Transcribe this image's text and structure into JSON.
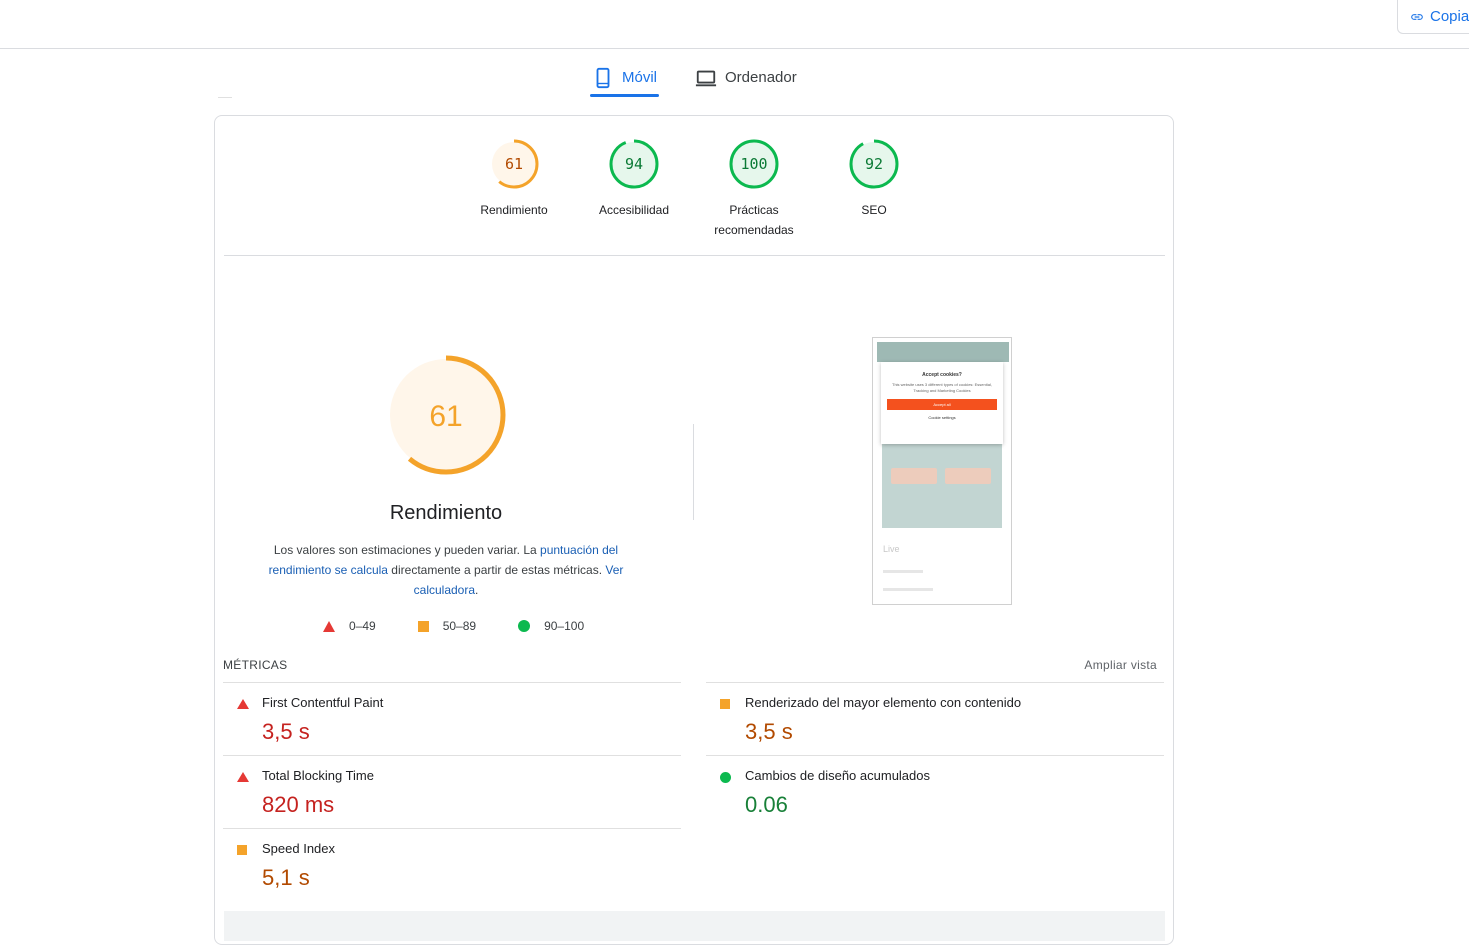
{
  "header": {
    "copy_label": "Copia"
  },
  "tabs": [
    {
      "label": "Móvil",
      "icon": "smartphone-icon",
      "active": true
    },
    {
      "label": "Ordenador",
      "icon": "laptop-icon",
      "active": false
    }
  ],
  "scores": [
    {
      "value": 61,
      "label": "Rendimiento",
      "color": "#f4a32a"
    },
    {
      "value": 94,
      "label": "Accesibilidad",
      "color": "#0cb94f"
    },
    {
      "value": 100,
      "label": "Prácticas recomendadas",
      "color": "#0cb94f"
    },
    {
      "value": 92,
      "label": "SEO",
      "color": "#0cb94f"
    }
  ],
  "performance": {
    "score": 61,
    "title": "Rendimiento",
    "desc_1": "Los valores son estimaciones y pueden variar. La ",
    "desc_link_1": "puntuación del rendimiento se calcula",
    "desc_2": " directamente a partir de estas métricas. ",
    "desc_link_2": "Ver calculadora",
    "desc_3": "."
  },
  "legend": [
    {
      "shape": "triangle",
      "range": "0–49"
    },
    {
      "shape": "square",
      "range": "50–89"
    },
    {
      "shape": "circle",
      "range": "90–100"
    }
  ],
  "screenshot": {
    "modal_title": "Accept cookies?",
    "modal_text": "This website uses 3 different types of cookies: Essential, Tracking and Marketing Cookies",
    "accept_label": "Accept all",
    "settings_label": "Cookie settings",
    "live_label": "Live"
  },
  "metrics": {
    "heading": "MÉTRICAS",
    "expand_label": "Ampliar vista",
    "items": [
      {
        "name": "First Contentful Paint",
        "value": "3,5 s",
        "rating": "fail"
      },
      {
        "name": "Renderizado del mayor elemento con contenido",
        "value": "3,5 s",
        "rating": "average"
      },
      {
        "name": "Total Blocking Time",
        "value": "820 ms",
        "rating": "fail"
      },
      {
        "name": "Cambios de diseño acumulados",
        "value": "0.06",
        "rating": "pass"
      },
      {
        "name": "Speed Index",
        "value": "5,1 s",
        "rating": "average"
      }
    ]
  },
  "colors": {
    "accent": "#1a73e8",
    "fail": "#e53935",
    "average": "#f4a32a",
    "pass": "#0cb94f"
  }
}
